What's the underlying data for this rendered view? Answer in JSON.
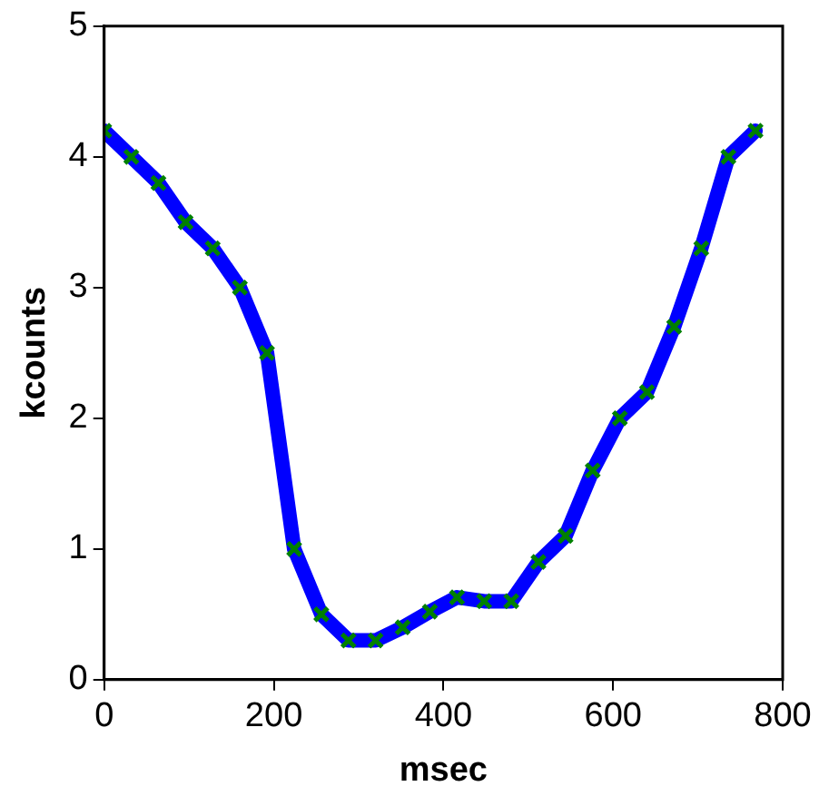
{
  "chart_data": {
    "type": "line",
    "xlabel": "msec",
    "ylabel": "kcounts",
    "x": [
      0,
      32,
      64,
      96,
      128,
      160,
      192,
      224,
      256,
      288,
      320,
      352,
      384,
      416,
      448,
      480,
      512,
      544,
      576,
      608,
      640,
      672,
      704,
      736,
      768
    ],
    "series": [
      {
        "color": "#0000ff",
        "colors": [
          "#008000",
          "#008000",
          "#008000",
          "#008000",
          "#008000",
          "#008000",
          "#008000",
          "#008000",
          "#008000",
          "#008000",
          "#008000",
          "#008000",
          "#008000",
          "#008000",
          "#008000",
          "#008000",
          "#008000",
          "#008000",
          "#008000",
          "#008000",
          "#008000",
          "#008000",
          "#008000",
          "#008000",
          "#008000"
        ],
        "values": [
          4.2,
          4.0,
          3.8,
          3.5,
          3.3,
          3.0,
          2.5,
          1.0,
          0.5,
          0.3,
          0.3,
          0.4,
          0.52,
          0.63,
          0.6,
          0.6,
          0.9,
          1.1,
          1.6,
          2.0,
          2.2,
          2.7,
          3.3,
          4.0,
          4.2
        ]
      }
    ],
    "xlim": [
      0,
      800
    ],
    "xticks": [
      0,
      200,
      400,
      600,
      800
    ],
    "ylim": [
      0,
      5
    ],
    "yticks": [
      0,
      1,
      2,
      3,
      4,
      5
    ],
    "grid": false,
    "legend": false,
    "marker": "cross",
    "line_style": "solid"
  }
}
